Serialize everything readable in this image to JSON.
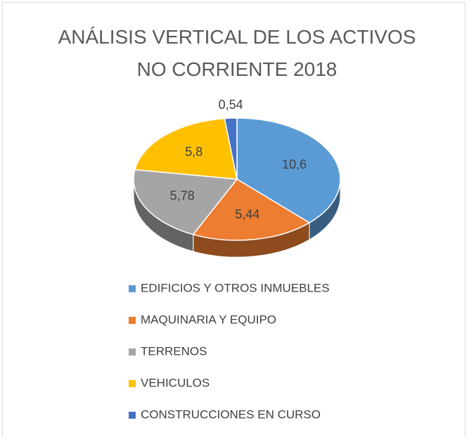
{
  "chart_data": {
    "type": "pie3d",
    "title": "ANÁLISIS VERTICAL DE LOS ACTIVOS NO CORRIENTE 2018",
    "categories": [
      "EDIFICIOS Y OTROS INMUEBLES",
      "MAQUINARIA Y EQUIPO",
      "TERRENOS",
      "VEHICULOS",
      "CONSTRUCCIONES EN CURSO"
    ],
    "values": [
      10.6,
      5.44,
      5.78,
      5.8,
      0.54
    ],
    "value_labels": [
      "10,6",
      "5,44",
      "5,78",
      "5,8",
      "0,54"
    ],
    "colors": [
      "#5b9bd5",
      "#ed7d31",
      "#a5a5a5",
      "#ffc000",
      "#4472c4"
    ],
    "legend": "bottom"
  }
}
